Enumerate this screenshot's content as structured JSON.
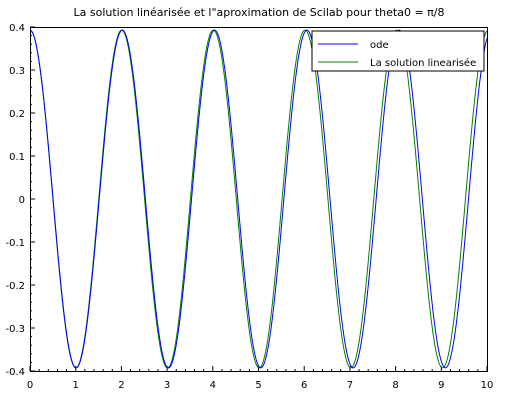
{
  "chart_data": {
    "type": "line",
    "title": "La solution linéarisée et l\"aproximation de Scilab pour theta0 = π/8",
    "xlabel": "",
    "ylabel": "",
    "xlim": [
      0,
      10
    ],
    "ylim": [
      -0.4,
      0.4
    ],
    "x_ticks": [
      "0",
      "1",
      "2",
      "3",
      "4",
      "5",
      "6",
      "7",
      "8",
      "9",
      "10"
    ],
    "y_ticks": [
      "0.4",
      "0.3",
      "0.2",
      "0.1",
      "0",
      "-0.1",
      "-0.2",
      "-0.3",
      "-0.4"
    ],
    "grid": false,
    "legend_position": "top-right",
    "series": [
      {
        "name": "ode",
        "color": "#0000ff",
        "amplitude": 0.3927,
        "period": 2.02
      },
      {
        "name": "La solution linearisée",
        "color": "#008000",
        "amplitude": 0.3927,
        "period": 2.006
      }
    ]
  }
}
